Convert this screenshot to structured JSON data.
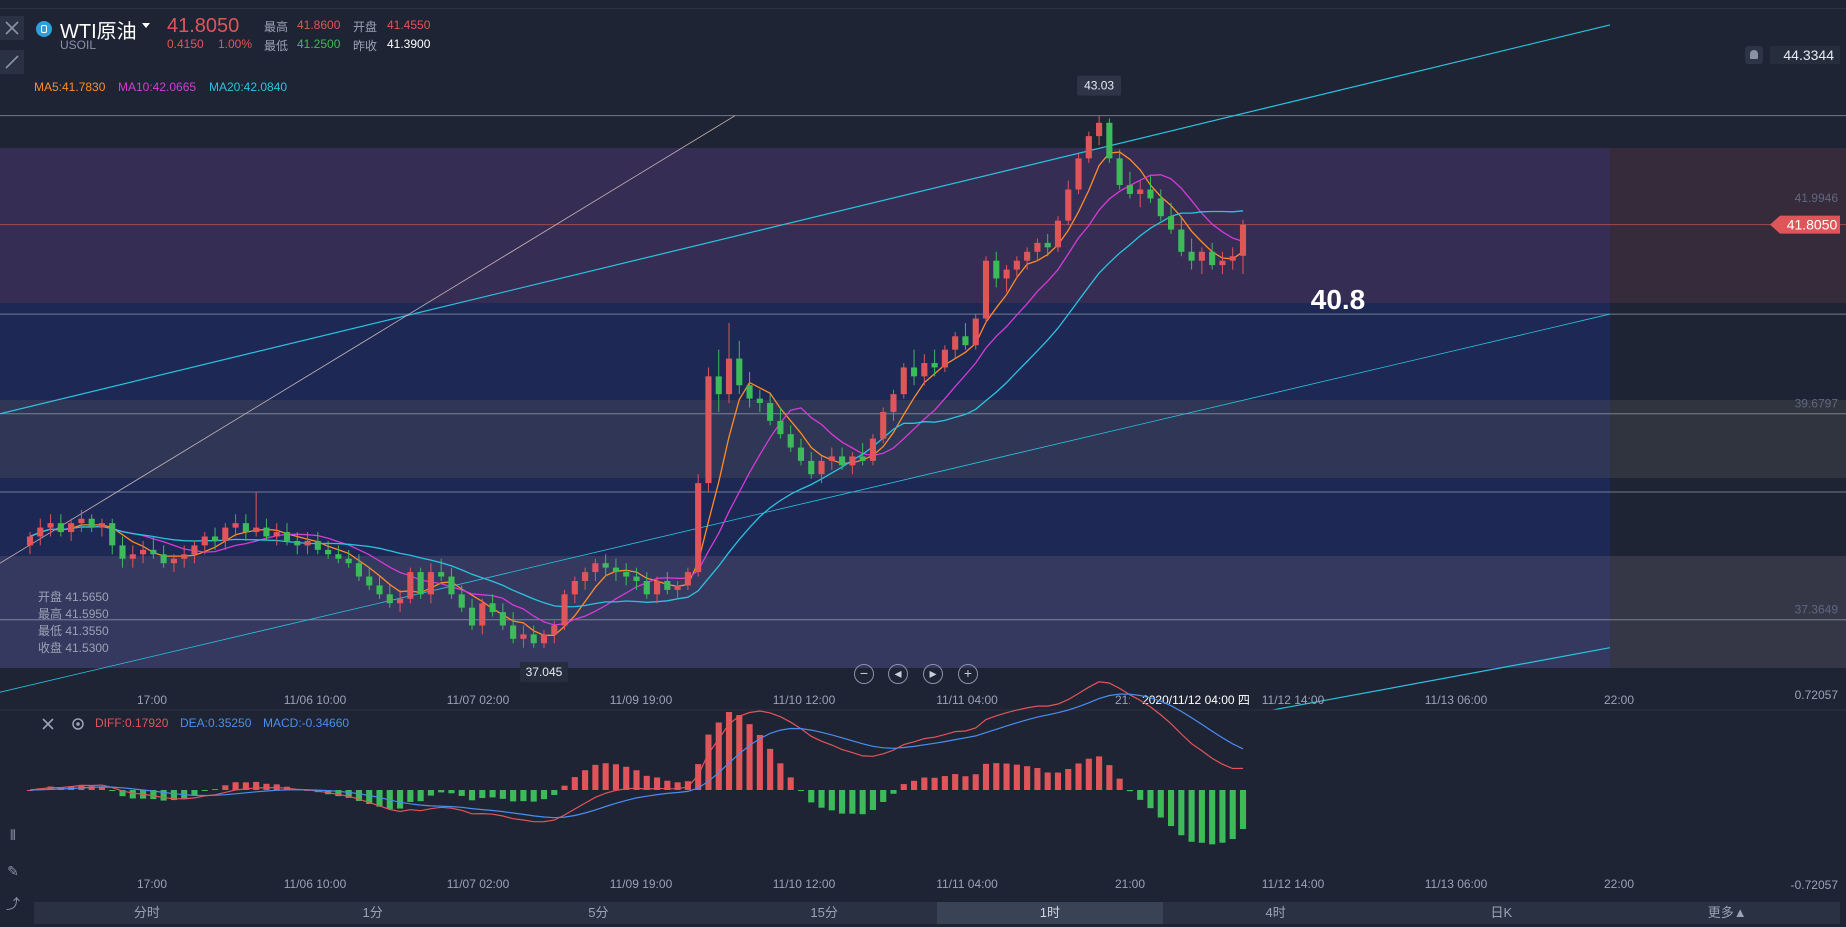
{
  "header": {
    "symbol_name": "WTI原油",
    "symbol_code": "USOIL",
    "price": "41.8050",
    "change": "0.4150",
    "change_pct": "1.00%",
    "high_label": "最高",
    "high": "41.8600",
    "open_label": "开盘",
    "open": "41.4550",
    "low_label": "最低",
    "low": "41.2500",
    "prev_label": "昨收",
    "prev_close": "41.3900",
    "top_right_price": "44.3344"
  },
  "ma_labels": {
    "ma5": "MA5:41.7830",
    "ma10": "MA10:42.0665",
    "ma20": "MA20:42.0840"
  },
  "ohlc_panel": {
    "open": "开盘 41.5650",
    "high": "最高 41.5950",
    "low": "最低 41.3550",
    "close": "收盘 41.5300"
  },
  "macd_labels": {
    "diff": "DIFF:0.17920",
    "dea": "DEA:0.35250",
    "macd": "MACD:-0.34660"
  },
  "tabs": [
    "分时",
    "1分",
    "5分",
    "15分",
    "1时",
    "4时",
    "日K",
    "更多▲"
  ],
  "active_tab": "1时",
  "colors": {
    "up": "#e0555a",
    "down": "#3dbb5a",
    "ma5": "#ff8c28",
    "ma10": "#d63bd6",
    "ma20": "#2ac3de",
    "channel": "#2ac3de",
    "bg": "#1e2433"
  },
  "chart_data": [
    {
      "type": "candlestick",
      "title": "WTI原油 USOIL 1时",
      "x_ticks": [
        "17:00",
        "11/06 10:00",
        "11/07 02:00",
        "11/09 19:00",
        "11/10 12:00",
        "11/11 04:00",
        "21:00",
        "11/12 14:00",
        "11/13 06:00",
        "22:00"
      ],
      "crosshair_time": "2020/11/12 04:00 四",
      "right_axis_labels": [
        "41.9946",
        "39.6797",
        "37.3649"
      ],
      "current_price_label": "41.8050",
      "annotation_text": "40.8",
      "peak_label": "43.03",
      "trough_label": "37.045",
      "horizontal_levels": [
        43.03,
        41.805,
        40.8,
        39.6797,
        38.8,
        37.3649
      ],
      "ylim": [
        36.35,
        44.33
      ],
      "candles": [
        [
          38.2,
          38.35,
          38.1,
          38.3
        ],
        [
          38.3,
          38.5,
          38.2,
          38.4
        ],
        [
          38.4,
          38.55,
          38.3,
          38.45
        ],
        [
          38.45,
          38.55,
          38.3,
          38.35
        ],
        [
          38.35,
          38.5,
          38.25,
          38.45
        ],
        [
          38.45,
          38.6,
          38.35,
          38.5
        ],
        [
          38.5,
          38.55,
          38.35,
          38.4
        ],
        [
          38.4,
          38.5,
          38.3,
          38.45
        ],
        [
          38.45,
          38.5,
          38.1,
          38.2
        ],
        [
          38.2,
          38.3,
          37.95,
          38.05
        ],
        [
          38.05,
          38.2,
          37.95,
          38.1
        ],
        [
          38.1,
          38.25,
          38.0,
          38.15
        ],
        [
          38.15,
          38.3,
          38.05,
          38.1
        ],
        [
          38.1,
          38.2,
          37.95,
          38.0
        ],
        [
          38.0,
          38.1,
          37.9,
          38.05
        ],
        [
          38.05,
          38.2,
          37.95,
          38.1
        ],
        [
          38.1,
          38.25,
          38.0,
          38.2
        ],
        [
          38.2,
          38.35,
          38.1,
          38.3
        ],
        [
          38.3,
          38.4,
          38.15,
          38.25
        ],
        [
          38.25,
          38.45,
          38.15,
          38.4
        ],
        [
          38.4,
          38.55,
          38.3,
          38.45
        ],
        [
          38.45,
          38.55,
          38.25,
          38.35
        ],
        [
          38.35,
          38.8,
          38.3,
          38.4
        ],
        [
          38.4,
          38.5,
          38.25,
          38.3
        ],
        [
          38.3,
          38.45,
          38.2,
          38.35
        ],
        [
          38.35,
          38.45,
          38.2,
          38.25
        ],
        [
          38.25,
          38.35,
          38.1,
          38.2
        ],
        [
          38.2,
          38.35,
          38.1,
          38.25
        ],
        [
          38.25,
          38.35,
          38.1,
          38.15
        ],
        [
          38.15,
          38.25,
          38.05,
          38.1
        ],
        [
          38.1,
          38.2,
          38.0,
          38.05
        ],
        [
          38.05,
          38.15,
          37.95,
          38.0
        ],
        [
          38.0,
          38.1,
          37.8,
          37.85
        ],
        [
          37.85,
          37.95,
          37.7,
          37.75
        ],
        [
          37.75,
          37.85,
          37.6,
          37.65
        ],
        [
          37.65,
          37.75,
          37.5,
          37.55
        ],
        [
          37.55,
          37.7,
          37.45,
          37.6
        ],
        [
          37.6,
          37.95,
          37.55,
          37.9
        ],
        [
          37.9,
          37.95,
          37.6,
          37.65
        ],
        [
          37.65,
          38.0,
          37.55,
          37.9
        ],
        [
          37.9,
          38.05,
          37.8,
          37.85
        ],
        [
          37.85,
          37.95,
          37.6,
          37.65
        ],
        [
          37.65,
          37.75,
          37.45,
          37.5
        ],
        [
          37.5,
          37.6,
          37.25,
          37.3
        ],
        [
          37.3,
          37.6,
          37.2,
          37.55
        ],
        [
          37.55,
          37.65,
          37.4,
          37.45
        ],
        [
          37.45,
          37.55,
          37.25,
          37.3
        ],
        [
          37.3,
          37.45,
          37.1,
          37.15
        ],
        [
          37.15,
          37.3,
          37.05,
          37.2
        ],
        [
          37.2,
          37.3,
          37.05,
          37.1
        ],
        [
          37.1,
          37.25,
          37.045,
          37.2
        ],
        [
          37.2,
          37.35,
          37.1,
          37.3
        ],
        [
          37.3,
          37.7,
          37.25,
          37.65
        ],
        [
          37.65,
          37.85,
          37.55,
          37.8
        ],
        [
          37.8,
          37.95,
          37.7,
          37.9
        ],
        [
          37.9,
          38.05,
          37.8,
          38.0
        ],
        [
          38.0,
          38.1,
          37.85,
          37.95
        ],
        [
          37.95,
          38.05,
          37.8,
          37.9
        ],
        [
          37.9,
          38.0,
          37.75,
          37.85
        ],
        [
          37.85,
          37.95,
          37.7,
          37.8
        ],
        [
          37.8,
          37.9,
          37.6,
          37.65
        ],
        [
          37.65,
          37.85,
          37.55,
          37.8
        ],
        [
          37.8,
          37.9,
          37.65,
          37.7
        ],
        [
          37.7,
          37.8,
          37.6,
          37.75
        ],
        [
          37.75,
          37.95,
          37.7,
          37.9
        ],
        [
          37.9,
          39.0,
          37.85,
          38.9
        ],
        [
          38.9,
          40.2,
          38.8,
          40.1
        ],
        [
          40.1,
          40.4,
          39.7,
          39.9
        ],
        [
          39.9,
          40.7,
          39.8,
          40.3
        ],
        [
          40.3,
          40.5,
          39.9,
          40.0
        ],
        [
          40.0,
          40.15,
          39.75,
          39.85
        ],
        [
          39.85,
          39.95,
          39.7,
          39.8
        ],
        [
          39.8,
          39.9,
          39.55,
          39.6
        ],
        [
          39.6,
          39.75,
          39.4,
          39.45
        ],
        [
          39.45,
          39.55,
          39.25,
          39.3
        ],
        [
          39.3,
          39.4,
          39.1,
          39.15
        ],
        [
          39.15,
          39.25,
          38.95,
          39.0
        ],
        [
          39.0,
          39.2,
          38.9,
          39.15
        ],
        [
          39.15,
          39.3,
          39.05,
          39.2
        ],
        [
          39.2,
          39.3,
          39.05,
          39.1
        ],
        [
          39.1,
          39.25,
          39.0,
          39.2
        ],
        [
          39.2,
          39.35,
          39.1,
          39.15
        ],
        [
          39.15,
          39.45,
          39.1,
          39.4
        ],
        [
          39.4,
          39.75,
          39.35,
          39.7
        ],
        [
          39.7,
          39.95,
          39.6,
          39.9
        ],
        [
          39.9,
          40.25,
          39.85,
          40.2
        ],
        [
          40.2,
          40.4,
          40.0,
          40.1
        ],
        [
          40.1,
          40.35,
          40.0,
          40.25
        ],
        [
          40.25,
          40.4,
          40.1,
          40.2
        ],
        [
          40.2,
          40.45,
          40.15,
          40.4
        ],
        [
          40.4,
          40.6,
          40.3,
          40.55
        ],
        [
          40.55,
          40.7,
          40.4,
          40.45
        ],
        [
          40.45,
          40.8,
          40.4,
          40.75
        ],
        [
          40.75,
          41.45,
          40.7,
          41.4
        ],
        [
          41.4,
          41.5,
          41.1,
          41.2
        ],
        [
          41.2,
          41.35,
          41.05,
          41.3
        ],
        [
          41.3,
          41.45,
          41.2,
          41.4
        ],
        [
          41.4,
          41.55,
          41.3,
          41.5
        ],
        [
          41.5,
          41.65,
          41.4,
          41.6
        ],
        [
          41.6,
          41.7,
          41.45,
          41.55
        ],
        [
          41.55,
          41.9,
          41.5,
          41.85
        ],
        [
          41.85,
          42.3,
          41.8,
          42.2
        ],
        [
          42.2,
          42.6,
          42.15,
          42.55
        ],
        [
          42.55,
          42.85,
          42.5,
          42.8
        ],
        [
          42.8,
          43.03,
          42.7,
          42.95
        ],
        [
          42.95,
          43.0,
          42.5,
          42.55
        ],
        [
          42.55,
          42.65,
          42.2,
          42.25
        ],
        [
          42.25,
          42.4,
          42.1,
          42.15
        ],
        [
          42.15,
          42.3,
          42.0,
          42.2
        ],
        [
          42.2,
          42.35,
          42.05,
          42.1
        ],
        [
          42.1,
          42.2,
          41.85,
          41.9
        ],
        [
          41.9,
          42.05,
          41.7,
          41.75
        ],
        [
          41.75,
          41.9,
          41.45,
          41.5
        ],
        [
          41.5,
          41.65,
          41.3,
          41.4
        ],
        [
          41.4,
          41.55,
          41.25,
          41.5
        ],
        [
          41.5,
          41.6,
          41.3,
          41.35
        ],
        [
          41.35,
          41.5,
          41.25,
          41.4
        ],
        [
          41.4,
          41.55,
          41.3,
          41.45
        ],
        [
          41.455,
          41.86,
          41.25,
          41.805
        ]
      ],
      "series": [
        {
          "name": "MA5",
          "value": "41.7830"
        },
        {
          "name": "MA10",
          "value": "42.0665"
        },
        {
          "name": "MA20",
          "value": "42.0840"
        }
      ]
    },
    {
      "type": "bar",
      "title": "MACD",
      "ylim": [
        -0.72057,
        0.72057
      ],
      "y_tick_labels": [
        "0.72057",
        "-0.72057"
      ],
      "series": [
        {
          "name": "DIFF",
          "last": 0.1792
        },
        {
          "name": "DEA",
          "last": 0.3525
        },
        {
          "name": "MACD",
          "last": -0.3466
        }
      ]
    }
  ]
}
